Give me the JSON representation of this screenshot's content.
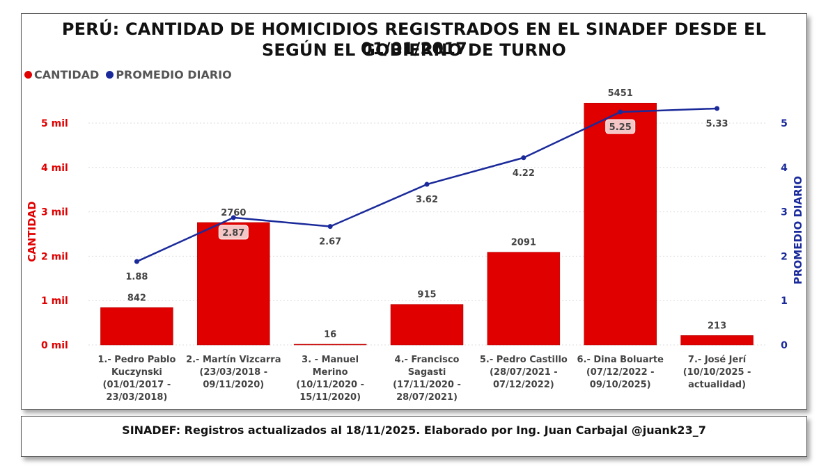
{
  "header": {
    "title_line1": "PERÚ: CANTIDAD DE HOMICIDIOS REGISTRADOS EN EL SINADEF DESDE EL 01/01/2017",
    "title_line2": "SEGÚN EL GOBIERNO DE TURNO"
  },
  "legend": {
    "items": [
      {
        "label": "CANTIDAD",
        "color": "#e00000"
      },
      {
        "label": "PROMEDIO DIARIO",
        "color": "#1a2a9a"
      }
    ]
  },
  "footer": {
    "text": "SINADEF: Registros actualizados al 18/11/2025. Elaborado por Ing. Juan Carbajal @juank23_7"
  },
  "chart_data": {
    "type": "bar+line",
    "title": "PERÚ: CANTIDAD DE HOMICIDIOS REGISTRADOS EN EL SINADEF DESDE EL 01/01/2017 SEGÚN EL GOBIERNO DE TURNO",
    "categories": [
      [
        "1.- Pedro Pablo",
        "Kuczynski",
        "(01/01/2017 -",
        "23/03/2018)"
      ],
      [
        "2.- Martín Vizcarra",
        "(23/03/2018 -",
        "09/11/2020)"
      ],
      [
        "3. - Manuel",
        "Merino",
        "(10/11/2020 -",
        "15/11/2020)"
      ],
      [
        "4.- Francisco",
        "Sagasti",
        "(17/11/2020 -",
        "28/07/2021)"
      ],
      [
        "5.- Pedro Castillo",
        "(28/07/2021 -",
        "07/12/2022)"
      ],
      [
        "6.- Dina Boluarte",
        "(07/12/2022 -",
        "09/10/2025)"
      ],
      [
        "7.- José Jerí",
        "(10/10/2025 -",
        "actualidad)"
      ]
    ],
    "series": [
      {
        "name": "CANTIDAD",
        "type": "bar",
        "axis": "left",
        "color": "#e00000",
        "values": [
          842,
          2760,
          16,
          915,
          2091,
          5451,
          213
        ],
        "labels": [
          "842",
          "2760",
          "16",
          "915",
          "2091",
          "5451",
          "213"
        ]
      },
      {
        "name": "PROMEDIO DIARIO",
        "type": "line",
        "axis": "right",
        "color": "#1a2a9a",
        "values": [
          1.88,
          2.87,
          2.67,
          3.62,
          4.22,
          5.25,
          5.33
        ],
        "labels": [
          "1.88",
          "2.87",
          "2.67",
          "3.62",
          "4.22",
          "5.25",
          "5.33"
        ]
      }
    ],
    "y_left": {
      "label": "CANTIDAD",
      "range": [
        0,
        5500
      ],
      "ticks": [
        0,
        1000,
        2000,
        3000,
        4000,
        5000
      ],
      "tick_labels": [
        "0 mil",
        "1 mil",
        "2 mil",
        "3 mil",
        "4 mil",
        "5 mil"
      ],
      "color": "#e00000"
    },
    "y_right": {
      "label": "PROMEDIO DIARIO",
      "range": [
        0,
        5.5
      ],
      "ticks": [
        0,
        1,
        2,
        3,
        4,
        5
      ],
      "tick_labels": [
        "0",
        "1",
        "2",
        "3",
        "4",
        "5"
      ],
      "color": "#1a2a9a"
    },
    "grid": true,
    "legend_position": "top-left"
  }
}
